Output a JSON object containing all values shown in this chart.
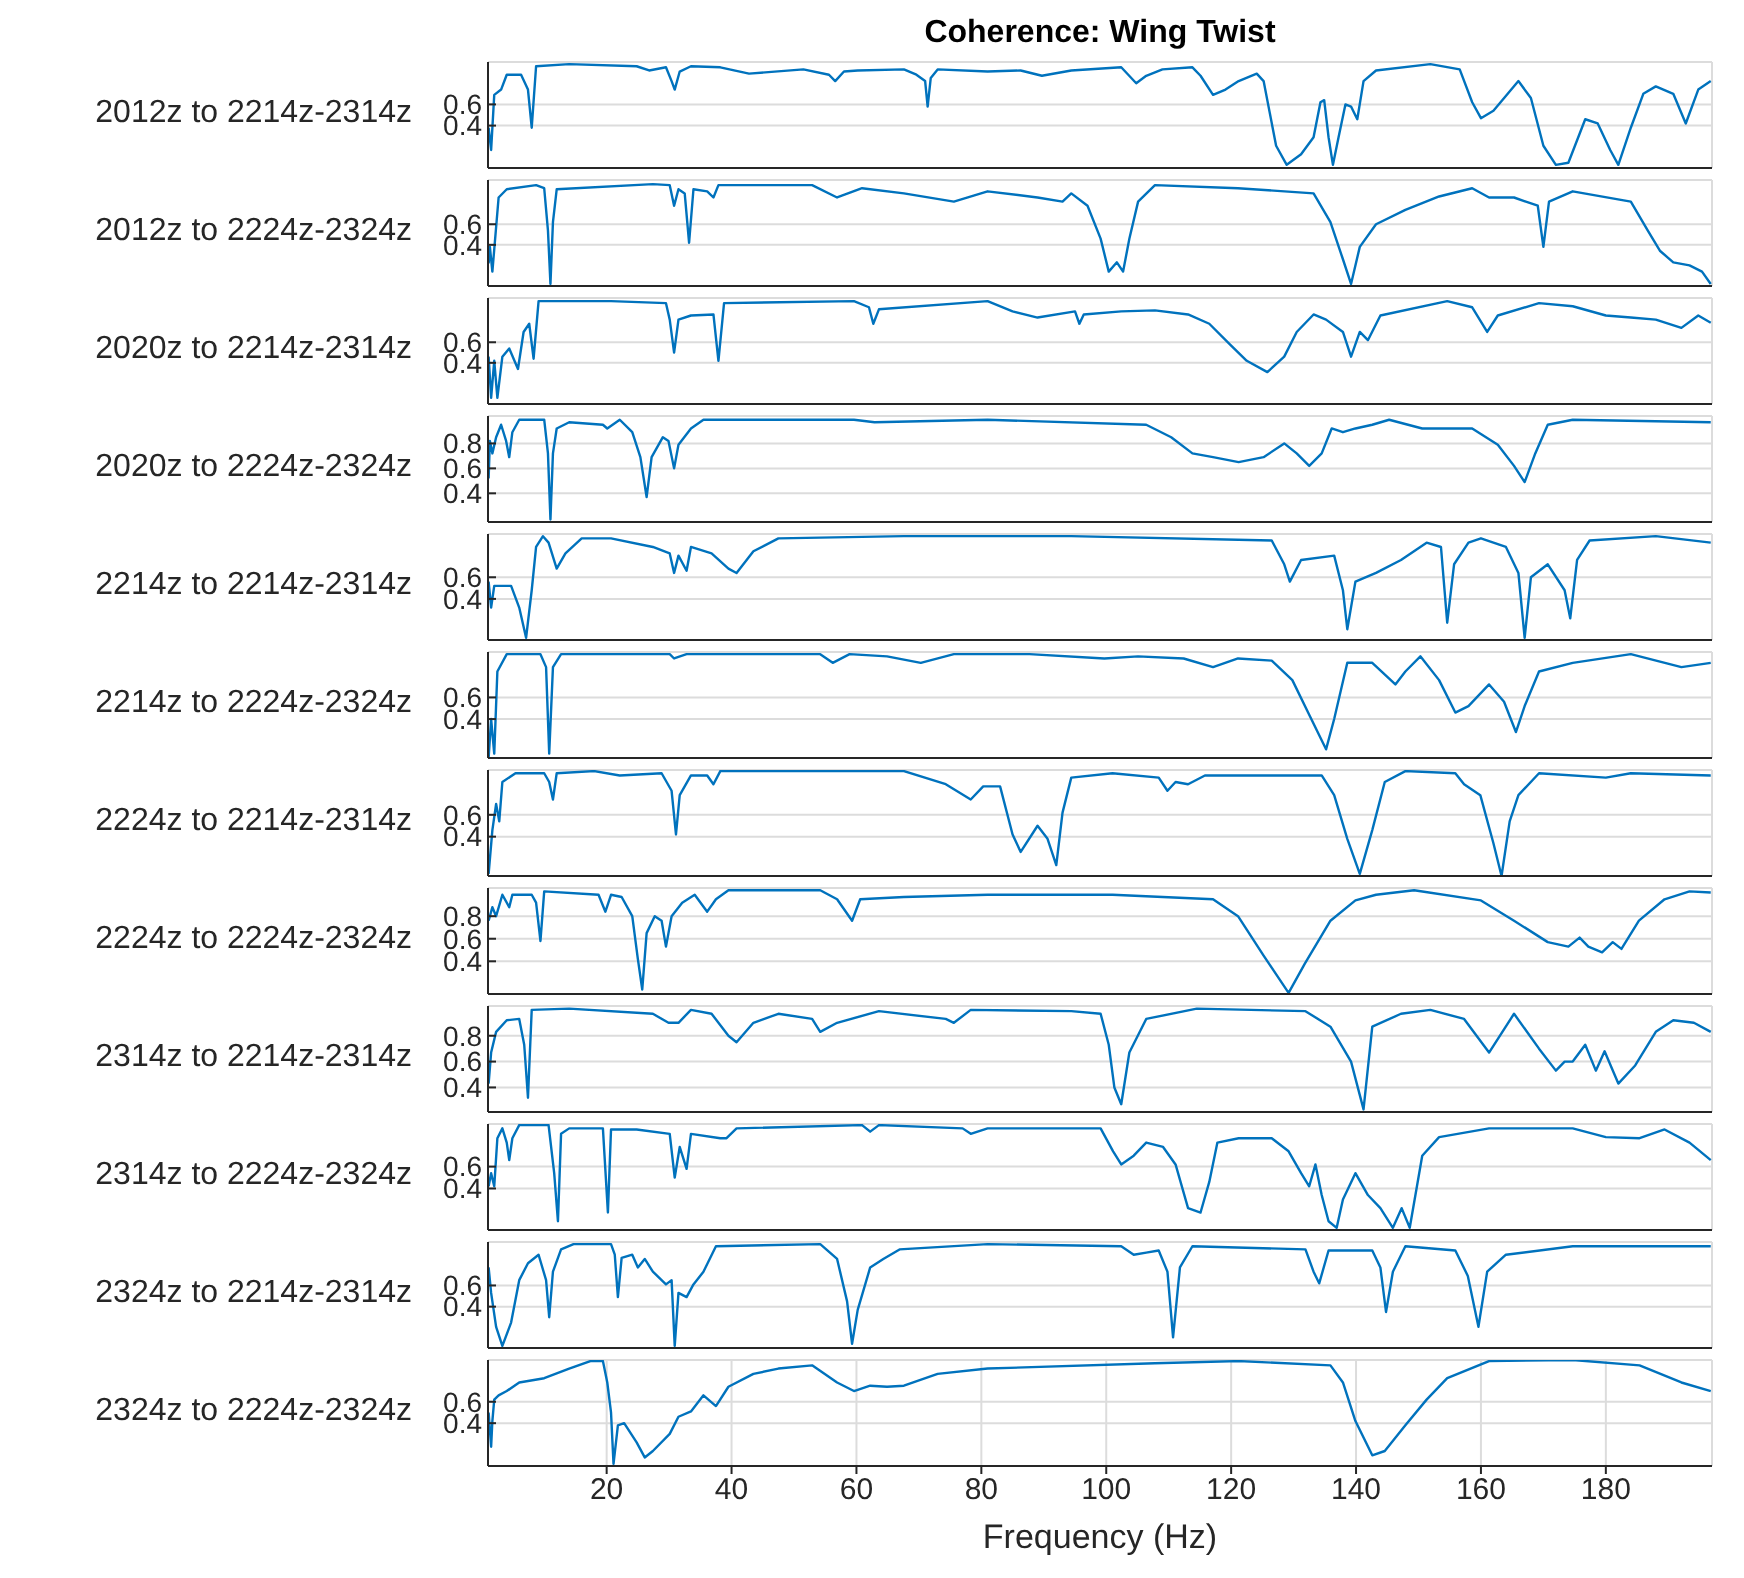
{
  "chart_data": [
    {
      "type": "line",
      "title": "Coherence: Wing Twist",
      "ylabel": "2012z to 2214z-2314z",
      "color": "#0072bd",
      "grid": true,
      "tick_labels": "y",
      "xlim": [
        1,
        197
      ],
      "ylim": [
        0,
        1
      ],
      "xticks": [
        20,
        40,
        60,
        80,
        100,
        120,
        140,
        160,
        180
      ],
      "yticks": [
        0.4,
        0.6
      ],
      "x": [
        1.1,
        1.5,
        2.0,
        3.1,
        4.0,
        6.3,
        7.4,
        8.0,
        8.7,
        14,
        24.8,
        26.8,
        29.5,
        30.4,
        30.9,
        31.7,
        33.5,
        38.2,
        42.8,
        51.5,
        55.6,
        56.6,
        58.0,
        60.2,
        67.6,
        69.6,
        71.0,
        71.4,
        71.9,
        73,
        81,
        86.3,
        89.7,
        94.4,
        102.4,
        104.8,
        106.4,
        109,
        113.8,
        115.1,
        117.1,
        119.1,
        121.2,
        124.1,
        125.2,
        127.2,
        128.9,
        131.2,
        133.2,
        134.3,
        134.9,
        135.6,
        136.3,
        137.2,
        138.3,
        139.2,
        140.2,
        141.2,
        143.2,
        151.9,
        156.6,
        158.6,
        160,
        162,
        166,
        168,
        170,
        172,
        174,
        176.7,
        178.7,
        180.7,
        182,
        184,
        186,
        188,
        190.8,
        192.8,
        194.8,
        196.8
      ],
      "values": [
        0.38,
        0.17,
        0.69,
        0.74,
        0.88,
        0.88,
        0.74,
        0.38,
        0.96,
        0.98,
        0.96,
        0.92,
        0.95,
        0.82,
        0.74,
        0.91,
        0.96,
        0.95,
        0.89,
        0.93,
        0.88,
        0.82,
        0.91,
        0.92,
        0.93,
        0.88,
        0.82,
        0.58,
        0.85,
        0.93,
        0.91,
        0.92,
        0.87,
        0.92,
        0.95,
        0.8,
        0.87,
        0.93,
        0.95,
        0.87,
        0.69,
        0.74,
        0.82,
        0.89,
        0.82,
        0.21,
        0.03,
        0.13,
        0.29,
        0.62,
        0.64,
        0.29,
        0.03,
        0.29,
        0.6,
        0.58,
        0.46,
        0.82,
        0.92,
        0.98,
        0.93,
        0.62,
        0.47,
        0.54,
        0.82,
        0.66,
        0.21,
        0.03,
        0.05,
        0.46,
        0.42,
        0.17,
        0.03,
        0.38,
        0.7,
        0.77,
        0.7,
        0.42,
        0.74,
        0.82
      ]
    },
    {
      "type": "line",
      "ylabel": "2012z to 2224z-2324z",
      "color": "#0072bd",
      "grid": true,
      "tick_labels": "y",
      "xlim": [
        1,
        197
      ],
      "ylim": [
        0,
        1.03
      ],
      "xticks": [
        20,
        40,
        60,
        80,
        100,
        120,
        140,
        160,
        180
      ],
      "yticks": [
        0.4,
        0.6
      ],
      "x": [
        1.1,
        1.3,
        1.7,
        2.7,
        4,
        8.7,
        10,
        10.6,
        11.0,
        11.4,
        12,
        27.4,
        30.1,
        30.8,
        31.5,
        32.5,
        33.2,
        33.9,
        36.1,
        37.1,
        37.9,
        52.9,
        56.9,
        60.9,
        67.6,
        75.6,
        81,
        89,
        93,
        94.4,
        97,
        99.1,
        100.4,
        101.7,
        102.7,
        103.7,
        105.1,
        107.8,
        121.1,
        133.2,
        135.9,
        137.9,
        139.2,
        140.6,
        143.2,
        147.9,
        153.3,
        158.6,
        161.3,
        165.3,
        169.1,
        170,
        170.9,
        174.7,
        184,
        186.7,
        188.7,
        190.8,
        193.4,
        195.4,
        196.8
      ],
      "values": [
        0.22,
        0.38,
        0.14,
        0.86,
        0.94,
        0.98,
        0.95,
        0.54,
        0.02,
        0.62,
        0.94,
        0.99,
        0.98,
        0.78,
        0.94,
        0.9,
        0.42,
        0.94,
        0.92,
        0.86,
        0.98,
        0.98,
        0.86,
        0.95,
        0.9,
        0.82,
        0.92,
        0.86,
        0.82,
        0.9,
        0.78,
        0.46,
        0.14,
        0.23,
        0.14,
        0.46,
        0.82,
        0.98,
        0.95,
        0.9,
        0.62,
        0.26,
        0.02,
        0.38,
        0.6,
        0.74,
        0.87,
        0.95,
        0.86,
        0.86,
        0.78,
        0.38,
        0.82,
        0.92,
        0.82,
        0.54,
        0.34,
        0.23,
        0.2,
        0.14,
        0.02
      ]
    },
    {
      "type": "line",
      "ylabel": "2020z to 2214z-2314z",
      "color": "#0072bd",
      "grid": true,
      "tick_labels": "y",
      "xlim": [
        1,
        197
      ],
      "ylim": [
        0,
        1.03
      ],
      "xticks": [
        20,
        40,
        60,
        80,
        100,
        120,
        140,
        160,
        180
      ],
      "yticks": [
        0.4,
        0.6
      ],
      "x": [
        1.1,
        1.5,
        2,
        2.5,
        3.3,
        4.4,
        5.8,
        6.7,
        7.6,
        8.3,
        9.1,
        20.7,
        29.5,
        30.1,
        30.8,
        31.5,
        33.5,
        37.1,
        37.9,
        38.8,
        59.6,
        62,
        62.7,
        63.6,
        81,
        85,
        89,
        95,
        95.7,
        96.4,
        102.4,
        107.8,
        113.1,
        116.5,
        119.8,
        122.5,
        125.8,
        128.5,
        130.5,
        133.2,
        135.2,
        137.9,
        139.2,
        140.6,
        141.9,
        143.9,
        154.6,
        158.6,
        161,
        162.7,
        169.3,
        174.7,
        180,
        184,
        188,
        192.1,
        194.8,
        196.8
      ],
      "values": [
        0.46,
        0.06,
        0.42,
        0.06,
        0.46,
        0.54,
        0.34,
        0.7,
        0.78,
        0.44,
        1.0,
        1.0,
        0.98,
        0.82,
        0.5,
        0.82,
        0.86,
        0.87,
        0.42,
        0.98,
        1.0,
        0.94,
        0.78,
        0.92,
        1.0,
        0.9,
        0.84,
        0.9,
        0.78,
        0.87,
        0.9,
        0.91,
        0.87,
        0.78,
        0.58,
        0.42,
        0.31,
        0.46,
        0.7,
        0.87,
        0.82,
        0.7,
        0.46,
        0.7,
        0.62,
        0.86,
        1.0,
        0.94,
        0.7,
        0.86,
        0.98,
        0.95,
        0.86,
        0.84,
        0.82,
        0.74,
        0.86,
        0.79
      ]
    },
    {
      "type": "line",
      "ylabel": "2020z to 2224z-2324z",
      "color": "#0072bd",
      "grid": true,
      "tick_labels": "y",
      "xlim": [
        1,
        197
      ],
      "ylim": [
        0.17,
        1.02
      ],
      "xticks": [
        20,
        40,
        60,
        80,
        100,
        120,
        140,
        160,
        180
      ],
      "yticks": [
        0.4,
        0.6,
        0.8
      ],
      "x": [
        1.1,
        1.3,
        1.7,
        2.3,
        3.1,
        3.9,
        4.4,
        4.9,
        6,
        10,
        10.6,
        11.0,
        11.4,
        12,
        14,
        19.4,
        20.1,
        22.1,
        24.1,
        25.4,
        26.4,
        27.2,
        29,
        29.9,
        30.8,
        31.5,
        33.5,
        35.5,
        59.6,
        62.9,
        81,
        106.4,
        110.4,
        113.8,
        117.1,
        121.2,
        125.2,
        128.5,
        130.5,
        132.5,
        134.5,
        136.1,
        137.9,
        139.9,
        142.6,
        145.3,
        150.6,
        158.6,
        162.7,
        165.3,
        167,
        168.7,
        170.7,
        174.7,
        196.8
      ],
      "values": [
        0.52,
        0.82,
        0.72,
        0.85,
        0.95,
        0.82,
        0.69,
        0.89,
        0.99,
        0.99,
        0.72,
        0.19,
        0.72,
        0.92,
        0.97,
        0.95,
        0.92,
        0.99,
        0.89,
        0.69,
        0.37,
        0.69,
        0.85,
        0.82,
        0.6,
        0.79,
        0.92,
        0.99,
        0.99,
        0.97,
        0.99,
        0.95,
        0.85,
        0.72,
        0.69,
        0.65,
        0.69,
        0.8,
        0.72,
        0.62,
        0.72,
        0.92,
        0.89,
        0.92,
        0.95,
        0.99,
        0.92,
        0.92,
        0.79,
        0.62,
        0.49,
        0.72,
        0.95,
        0.99,
        0.97
      ]
    },
    {
      "type": "line",
      "ylabel": "2214z to 2214z-2314z",
      "color": "#0072bd",
      "grid": true,
      "tick_labels": "y",
      "xlim": [
        1,
        197
      ],
      "ylim": [
        0.02,
        1.0
      ],
      "xticks": [
        20,
        40,
        60,
        80,
        100,
        120,
        140,
        160,
        180
      ],
      "yticks": [
        0.4,
        0.6
      ],
      "x": [
        1.1,
        1.5,
        2.0,
        3.1,
        4.7,
        6.0,
        7.1,
        8,
        8.7,
        9.8,
        10.7,
        12,
        13.4,
        16,
        20.7,
        27.4,
        30.1,
        30.8,
        31.5,
        32.8,
        33.5,
        36.8,
        39.5,
        40.8,
        43.5,
        47.5,
        67.6,
        94.4,
        126.5,
        128.5,
        129.4,
        131.2,
        136.5,
        137.9,
        138.6,
        139.9,
        143.2,
        147.2,
        151.3,
        153.6,
        154.6,
        155.7,
        158,
        160,
        164,
        166,
        167,
        168,
        170.7,
        173.4,
        174.3,
        175.4,
        177.4,
        188,
        196.8
      ],
      "values": [
        0.56,
        0.32,
        0.52,
        0.52,
        0.52,
        0.32,
        0.04,
        0.48,
        0.88,
        0.98,
        0.92,
        0.68,
        0.82,
        0.96,
        0.96,
        0.88,
        0.82,
        0.64,
        0.8,
        0.66,
        0.88,
        0.82,
        0.68,
        0.64,
        0.84,
        0.96,
        0.98,
        0.98,
        0.94,
        0.72,
        0.56,
        0.76,
        0.8,
        0.48,
        0.12,
        0.56,
        0.64,
        0.76,
        0.92,
        0.88,
        0.18,
        0.72,
        0.92,
        0.96,
        0.88,
        0.64,
        0.04,
        0.6,
        0.72,
        0.48,
        0.22,
        0.76,
        0.94,
        0.98,
        0.92
      ]
    },
    {
      "type": "line",
      "ylabel": "2214z to 2224z-2324z",
      "color": "#0072bd",
      "grid": true,
      "tick_labels": "y",
      "xlim": [
        1,
        197
      ],
      "ylim": [
        0.04,
        1.02
      ],
      "xticks": [
        20,
        40,
        60,
        80,
        100,
        120,
        140,
        160,
        180
      ],
      "yticks": [
        0.4,
        0.6
      ],
      "x": [
        1.1,
        1.5,
        2.0,
        2.5,
        4,
        9.4,
        10.3,
        10.8,
        11.4,
        12.7,
        30.1,
        30.8,
        32.8,
        54.2,
        56.2,
        58.9,
        64.9,
        70.3,
        75.6,
        87.7,
        99.7,
        105.1,
        112.4,
        117.1,
        121.1,
        126.5,
        129.8,
        132.5,
        135.2,
        136.5,
        138.6,
        142.6,
        146.3,
        147.9,
        150.3,
        153.3,
        155.9,
        158,
        161.3,
        163.7,
        165.6,
        167,
        169.3,
        174.7,
        184,
        192.1,
        196.8
      ],
      "values": [
        0.04,
        0.4,
        0.08,
        0.84,
        1.0,
        1.0,
        0.88,
        0.08,
        0.88,
        1.0,
        1.0,
        0.96,
        1.0,
        1.0,
        0.92,
        1.0,
        0.98,
        0.92,
        1.0,
        1.0,
        0.96,
        0.98,
        0.96,
        0.88,
        0.96,
        0.94,
        0.76,
        0.44,
        0.12,
        0.4,
        0.92,
        0.92,
        0.72,
        0.84,
        0.98,
        0.76,
        0.46,
        0.52,
        0.72,
        0.56,
        0.28,
        0.52,
        0.84,
        0.92,
        1.0,
        0.88,
        0.92
      ]
    },
    {
      "type": "line",
      "ylabel": "2224z to 2214z-2314z",
      "color": "#0072bd",
      "grid": true,
      "tick_labels": "y",
      "xlim": [
        1,
        197
      ],
      "ylim": [
        0.04,
        1.01
      ],
      "xticks": [
        20,
        40,
        60,
        80,
        100,
        120,
        140,
        160,
        180
      ],
      "yticks": [
        0.4,
        0.6
      ],
      "x": [
        1.1,
        1.7,
        2.3,
        2.8,
        3.3,
        5.4,
        10,
        10.8,
        11.4,
        12,
        18,
        22.1,
        28.8,
        30.4,
        31.1,
        31.7,
        33.5,
        36.1,
        37.1,
        38.2,
        67.6,
        74.3,
        78.3,
        80.3,
        83,
        85,
        86.3,
        89,
        90.6,
        92,
        93,
        94.4,
        101,
        108.4,
        109.8,
        111.1,
        113.1,
        115.8,
        134.5,
        136.5,
        138.6,
        140.6,
        142.6,
        144.6,
        147.9,
        155.9,
        157.3,
        159.9,
        162,
        163.3,
        164.6,
        166,
        169.3,
        180,
        184,
        196.8
      ],
      "values": [
        0.06,
        0.46,
        0.7,
        0.54,
        0.9,
        0.98,
        0.98,
        0.9,
        0.74,
        0.98,
        1.0,
        0.96,
        0.98,
        0.82,
        0.42,
        0.78,
        0.96,
        0.96,
        0.88,
        1.0,
        1.0,
        0.88,
        0.74,
        0.86,
        0.86,
        0.42,
        0.26,
        0.5,
        0.38,
        0.14,
        0.62,
        0.94,
        0.98,
        0.94,
        0.82,
        0.9,
        0.88,
        0.96,
        0.96,
        0.78,
        0.38,
        0.06,
        0.46,
        0.9,
        1.0,
        0.98,
        0.88,
        0.78,
        0.34,
        0.04,
        0.54,
        0.78,
        0.98,
        0.94,
        0.98,
        0.96
      ]
    },
    {
      "type": "line",
      "ylabel": "2224z to 2224z-2324z",
      "color": "#0072bd",
      "grid": true,
      "tick_labels": "y",
      "xlim": [
        1,
        197
      ],
      "ylim": [
        0.11,
        1.05
      ],
      "xticks": [
        20,
        40,
        60,
        80,
        100,
        120,
        140,
        160,
        180
      ],
      "yticks": [
        0.4,
        0.6,
        0.8
      ],
      "x": [
        1.1,
        1.7,
        2.3,
        3.3,
        4.4,
        4.9,
        8,
        8.7,
        9.4,
        10,
        18.7,
        19.8,
        20.7,
        22.4,
        24.1,
        25,
        25.7,
        26.4,
        27.7,
        28.8,
        29.5,
        30.4,
        32.1,
        34.1,
        36.1,
        37.5,
        39.5,
        54.2,
        56.9,
        59.3,
        60.6,
        67.6,
        81,
        101,
        117.1,
        121.1,
        125.2,
        129.2,
        131.8,
        135.9,
        139.9,
        143.2,
        149.3,
        160,
        165.3,
        170.7,
        174,
        175.8,
        177.2,
        179.4,
        181.1,
        182.5,
        185.3,
        189.4,
        193.4,
        196.8
      ],
      "values": [
        0.76,
        0.88,
        0.8,
        0.99,
        0.88,
        0.99,
        0.99,
        0.92,
        0.58,
        1.02,
        0.99,
        0.84,
        0.99,
        0.97,
        0.8,
        0.42,
        0.15,
        0.65,
        0.8,
        0.76,
        0.53,
        0.8,
        0.92,
        0.99,
        0.84,
        0.95,
        1.03,
        1.03,
        0.95,
        0.76,
        0.95,
        0.97,
        0.99,
        0.99,
        0.95,
        0.8,
        0.45,
        0.12,
        0.38,
        0.76,
        0.94,
        0.99,
        1.03,
        0.94,
        0.76,
        0.57,
        0.53,
        0.61,
        0.53,
        0.48,
        0.57,
        0.51,
        0.76,
        0.95,
        1.02,
        1.01
      ]
    },
    {
      "type": "line",
      "ylabel": "2314z to 2214z-2314z",
      "color": "#0072bd",
      "grid": true,
      "tick_labels": "y",
      "xlim": [
        1,
        197
      ],
      "ylim": [
        0.21,
        1.03
      ],
      "xticks": [
        20,
        40,
        60,
        80,
        100,
        120,
        140,
        160,
        180
      ],
      "yticks": [
        0.4,
        0.6,
        0.8
      ],
      "x": [
        1.1,
        1.5,
        2.3,
        4,
        6,
        6.8,
        7.4,
        8,
        14,
        27.4,
        29.9,
        31.5,
        33.5,
        36.8,
        39.5,
        40.8,
        43.5,
        47.5,
        52.9,
        54.2,
        56.9,
        63.6,
        74.3,
        75.6,
        78.3,
        94.4,
        99.1,
        100.4,
        101.3,
        102.4,
        103.7,
        106.4,
        114.5,
        131.9,
        135.9,
        139.2,
        141.2,
        142.6,
        147.2,
        151.9,
        157.3,
        161.3,
        165.3,
        169.3,
        172,
        173.4,
        174.7,
        176.7,
        178.4,
        179.8,
        182,
        184.7,
        188,
        190.8,
        194.1,
        196.8
      ],
      "values": [
        0.43,
        0.67,
        0.83,
        0.92,
        0.93,
        0.73,
        0.32,
        1.0,
        1.01,
        0.97,
        0.9,
        0.9,
        1.0,
        0.97,
        0.8,
        0.75,
        0.9,
        0.97,
        0.93,
        0.83,
        0.9,
        0.99,
        0.93,
        0.9,
        1.0,
        0.99,
        0.97,
        0.73,
        0.4,
        0.27,
        0.67,
        0.93,
        1.01,
        0.99,
        0.87,
        0.6,
        0.23,
        0.87,
        0.97,
        1.0,
        0.93,
        0.67,
        0.97,
        0.7,
        0.53,
        0.6,
        0.6,
        0.73,
        0.53,
        0.68,
        0.43,
        0.57,
        0.83,
        0.92,
        0.9,
        0.83
      ]
    },
    {
      "type": "line",
      "ylabel": "2314z to 2224z-2324z",
      "color": "#0072bd",
      "grid": true,
      "tick_labels": "y",
      "xlim": [
        1,
        197
      ],
      "ylim": [
        0.02,
        0.99
      ],
      "xticks": [
        20,
        40,
        60,
        80,
        100,
        120,
        140,
        160,
        180
      ],
      "yticks": [
        0.4,
        0.6
      ],
      "x": [
        1.1,
        1.5,
        2,
        2.5,
        3.3,
        4,
        4.4,
        4.9,
        6,
        10.7,
        11.6,
        12.2,
        12.7,
        14,
        19.4,
        20.2,
        20.7,
        24.8,
        30.1,
        30.9,
        31.7,
        32.8,
        33.5,
        38.2,
        39.2,
        40.8,
        60.9,
        62.2,
        63.6,
        77,
        78.3,
        81,
        99.1,
        101.1,
        102.4,
        104.4,
        106.4,
        109.1,
        111.1,
        113.1,
        115.1,
        116.5,
        117.8,
        121.2,
        126.5,
        129.2,
        131.2,
        132.5,
        133.5,
        134.5,
        135.6,
        136.9,
        137.9,
        139.9,
        141.9,
        143.9,
        145.9,
        147.3,
        148.6,
        150.6,
        153.3,
        161.3,
        174.7,
        180,
        185.4,
        189.4,
        193.4,
        196.8
      ],
      "values": [
        0.42,
        0.54,
        0.42,
        0.86,
        0.95,
        0.82,
        0.66,
        0.86,
        0.98,
        0.98,
        0.54,
        0.1,
        0.9,
        0.95,
        0.95,
        0.18,
        0.94,
        0.94,
        0.9,
        0.5,
        0.78,
        0.58,
        0.9,
        0.86,
        0.86,
        0.95,
        0.98,
        0.92,
        0.98,
        0.95,
        0.9,
        0.95,
        0.95,
        0.74,
        0.62,
        0.7,
        0.82,
        0.78,
        0.62,
        0.22,
        0.18,
        0.46,
        0.82,
        0.86,
        0.86,
        0.74,
        0.54,
        0.42,
        0.62,
        0.34,
        0.1,
        0.04,
        0.3,
        0.54,
        0.34,
        0.22,
        0.04,
        0.22,
        0.04,
        0.7,
        0.87,
        0.95,
        0.95,
        0.87,
        0.86,
        0.94,
        0.82,
        0.66
      ]
    },
    {
      "type": "line",
      "ylabel": "2324z to 2214z-2314z",
      "color": "#0072bd",
      "grid": true,
      "tick_labels": "y",
      "xlim": [
        1,
        197
      ],
      "ylim": [
        0.01,
        1.01
      ],
      "xticks": [
        20,
        40,
        60,
        80,
        100,
        120,
        140,
        160,
        180
      ],
      "yticks": [
        0.4,
        0.6
      ],
      "x": [
        1.1,
        1.5,
        2.3,
        3.3,
        4.7,
        6,
        7.4,
        9.1,
        10.3,
        10.8,
        11.4,
        12.7,
        14.7,
        20.7,
        21.3,
        21.8,
        22.4,
        24.1,
        25,
        26.1,
        27.4,
        29.5,
        30.4,
        30.9,
        31.5,
        32.8,
        33.9,
        35.5,
        37.5,
        54.2,
        56.9,
        58.5,
        59.3,
        60.2,
        62.2,
        64.3,
        66.9,
        81,
        102.4,
        104.4,
        106.4,
        108.4,
        109.8,
        110.7,
        111.8,
        113.8,
        131.9,
        133.2,
        134.1,
        135.6,
        142.6,
        143.9,
        144.8,
        145.9,
        147.9,
        155.9,
        157.9,
        159.6,
        161,
        164,
        174.7,
        188,
        196.8
      ],
      "values": [
        0.77,
        0.53,
        0.21,
        0.03,
        0.25,
        0.65,
        0.81,
        0.89,
        0.65,
        0.3,
        0.73,
        0.94,
        0.99,
        0.99,
        0.89,
        0.49,
        0.86,
        0.89,
        0.77,
        0.85,
        0.73,
        0.61,
        0.65,
        0.03,
        0.53,
        0.49,
        0.61,
        0.73,
        0.97,
        0.99,
        0.85,
        0.45,
        0.05,
        0.37,
        0.77,
        0.85,
        0.94,
        0.99,
        0.97,
        0.89,
        0.91,
        0.93,
        0.73,
        0.11,
        0.77,
        0.97,
        0.94,
        0.73,
        0.62,
        0.93,
        0.93,
        0.77,
        0.35,
        0.73,
        0.97,
        0.93,
        0.69,
        0.21,
        0.73,
        0.89,
        0.97,
        0.97,
        0.97
      ]
    },
    {
      "type": "line",
      "ylabel": "2324z to 2224z-2324z",
      "xlabel": "Frequency (Hz)",
      "color": "#0072bd",
      "grid": true,
      "xlim": [
        1,
        197
      ],
      "ylim": [
        0,
        0.99
      ],
      "xticks": [
        20,
        40,
        60,
        80,
        100,
        120,
        140,
        160,
        180
      ],
      "yticks": [
        0.4,
        0.6
      ],
      "x": [
        1.1,
        1.5,
        1.7,
        2,
        2.7,
        4,
        6,
        10,
        14,
        17.4,
        19.4,
        20.1,
        20.7,
        21.1,
        21.8,
        22.8,
        24.8,
        26.1,
        27.4,
        30.1,
        31.5,
        33.5,
        35.5,
        37.5,
        39.5,
        43.5,
        47.5,
        52.9,
        56.9,
        59.6,
        62.2,
        64.9,
        67.6,
        73,
        81,
        107.8,
        121.2,
        135.9,
        137.9,
        139.9,
        142.6,
        144.6,
        147.9,
        151.3,
        154.6,
        161.3,
        174.7,
        185.4,
        192.1,
        196.8
      ],
      "values": [
        0.5,
        0.18,
        0.42,
        0.62,
        0.66,
        0.7,
        0.78,
        0.82,
        0.91,
        0.98,
        0.98,
        0.78,
        0.5,
        0.02,
        0.38,
        0.4,
        0.22,
        0.08,
        0.14,
        0.3,
        0.46,
        0.51,
        0.66,
        0.56,
        0.74,
        0.86,
        0.91,
        0.94,
        0.78,
        0.7,
        0.75,
        0.74,
        0.75,
        0.86,
        0.91,
        0.96,
        0.98,
        0.94,
        0.78,
        0.42,
        0.1,
        0.14,
        0.38,
        0.62,
        0.82,
        0.98,
        0.99,
        0.94,
        0.78,
        0.7
      ]
    }
  ]
}
